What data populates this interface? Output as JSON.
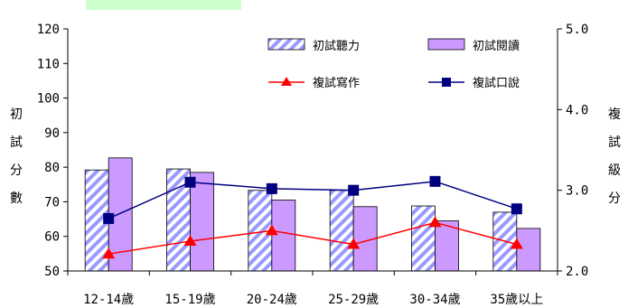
{
  "chart_data": {
    "type": "bar",
    "categories": [
      "12-14歲",
      "15-19歲",
      "20-24歲",
      "25-29歲",
      "30-34歲",
      "35歲以上"
    ],
    "series": [
      {
        "name": "初試聽力",
        "type": "bar",
        "axis": "left",
        "pattern": "diagonal-stripes",
        "color": "#9999ff",
        "values": [
          79.2,
          79.5,
          73.3,
          73.3,
          68.8,
          67.0
        ]
      },
      {
        "name": "初試閱讀",
        "type": "bar",
        "axis": "left",
        "color": "#cc99ff",
        "values": [
          82.7,
          78.5,
          70.5,
          68.6,
          64.5,
          62.3
        ]
      },
      {
        "name": "複試寫作",
        "type": "line",
        "axis": "right",
        "marker": "triangle",
        "color": "#ff0000",
        "values": [
          2.21,
          2.37,
          2.5,
          2.33,
          2.6,
          2.33
        ]
      },
      {
        "name": "複試口說",
        "type": "line",
        "axis": "right",
        "marker": "square",
        "color": "#000080",
        "values": [
          2.65,
          3.1,
          3.02,
          3.0,
          3.11,
          2.77
        ]
      }
    ],
    "ylabel": "初試分數",
    "y2label": "複試級分",
    "ylim": [
      50,
      120
    ],
    "y_ticks": [
      "50",
      "60",
      "70",
      "80",
      "90",
      "100",
      "110",
      "120"
    ],
    "y2lim": [
      2.0,
      5.0
    ],
    "y2_ticks": [
      "2.0",
      "3.0",
      "4.0",
      "5.0"
    ],
    "grid": false,
    "legend_position": "top-right"
  }
}
